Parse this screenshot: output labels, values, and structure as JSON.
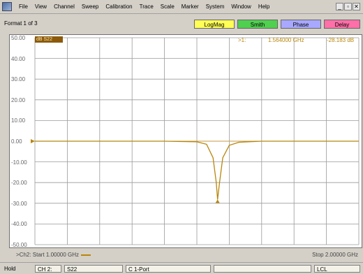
{
  "menubar": {
    "items": [
      "File",
      "View",
      "Channel",
      "Sweep",
      "Calibration",
      "Trace",
      "Scale",
      "Marker",
      "System",
      "Window",
      "Help"
    ],
    "window_controls": [
      "_",
      "▫",
      "✕"
    ]
  },
  "toolbar": {
    "format_label": "Format 1 of 3",
    "buttons": [
      {
        "label": "LogMag",
        "color": "#ffff55"
      },
      {
        "label": "Smith",
        "color": "#4fd04f"
      },
      {
        "label": "Phase",
        "color": "#a8a8ff"
      },
      {
        "label": "Delay",
        "color": "#ff6fa8"
      }
    ]
  },
  "plot": {
    "trace_tag": "dB S22",
    "marker": {
      "id": ">1:",
      "frequency": "1.564000 GHz",
      "value": "-28.183 dB"
    },
    "y_labels": [
      "50.00",
      "40.00",
      "30.00",
      "20.00",
      "10.00",
      "0.00",
      "-10.00",
      "-20.00",
      "-30.00",
      "-40.00",
      "-50.00"
    ],
    "trace_color": "#b8860b"
  },
  "chart_data": {
    "type": "line",
    "title": "",
    "xlabel": "",
    "ylabel": "",
    "x_range_ghz": [
      1.0,
      2.0
    ],
    "ylim": [
      -50,
      50
    ],
    "grid": true,
    "series": [
      {
        "x": [
          1.0,
          1.2,
          1.4,
          1.5,
          1.53,
          1.55,
          1.56,
          1.564,
          1.57,
          1.58,
          1.6,
          1.63,
          1.7,
          1.85,
          2.0
        ],
        "y": [
          0,
          0,
          0,
          -0.3,
          -1.5,
          -8,
          -20,
          -28.183,
          -20,
          -8,
          -2,
          -0.5,
          0,
          0,
          0
        ]
      }
    ]
  },
  "channel": {
    "start_text": ">Ch2: Start 1.00000 GHz",
    "stop_text": "Stop 2.00000 GHz"
  },
  "statusbar": {
    "state": "Hold",
    "channel": "CH 2:",
    "param": "S22",
    "cal": "C 1-Port",
    "remote": "LCL"
  }
}
